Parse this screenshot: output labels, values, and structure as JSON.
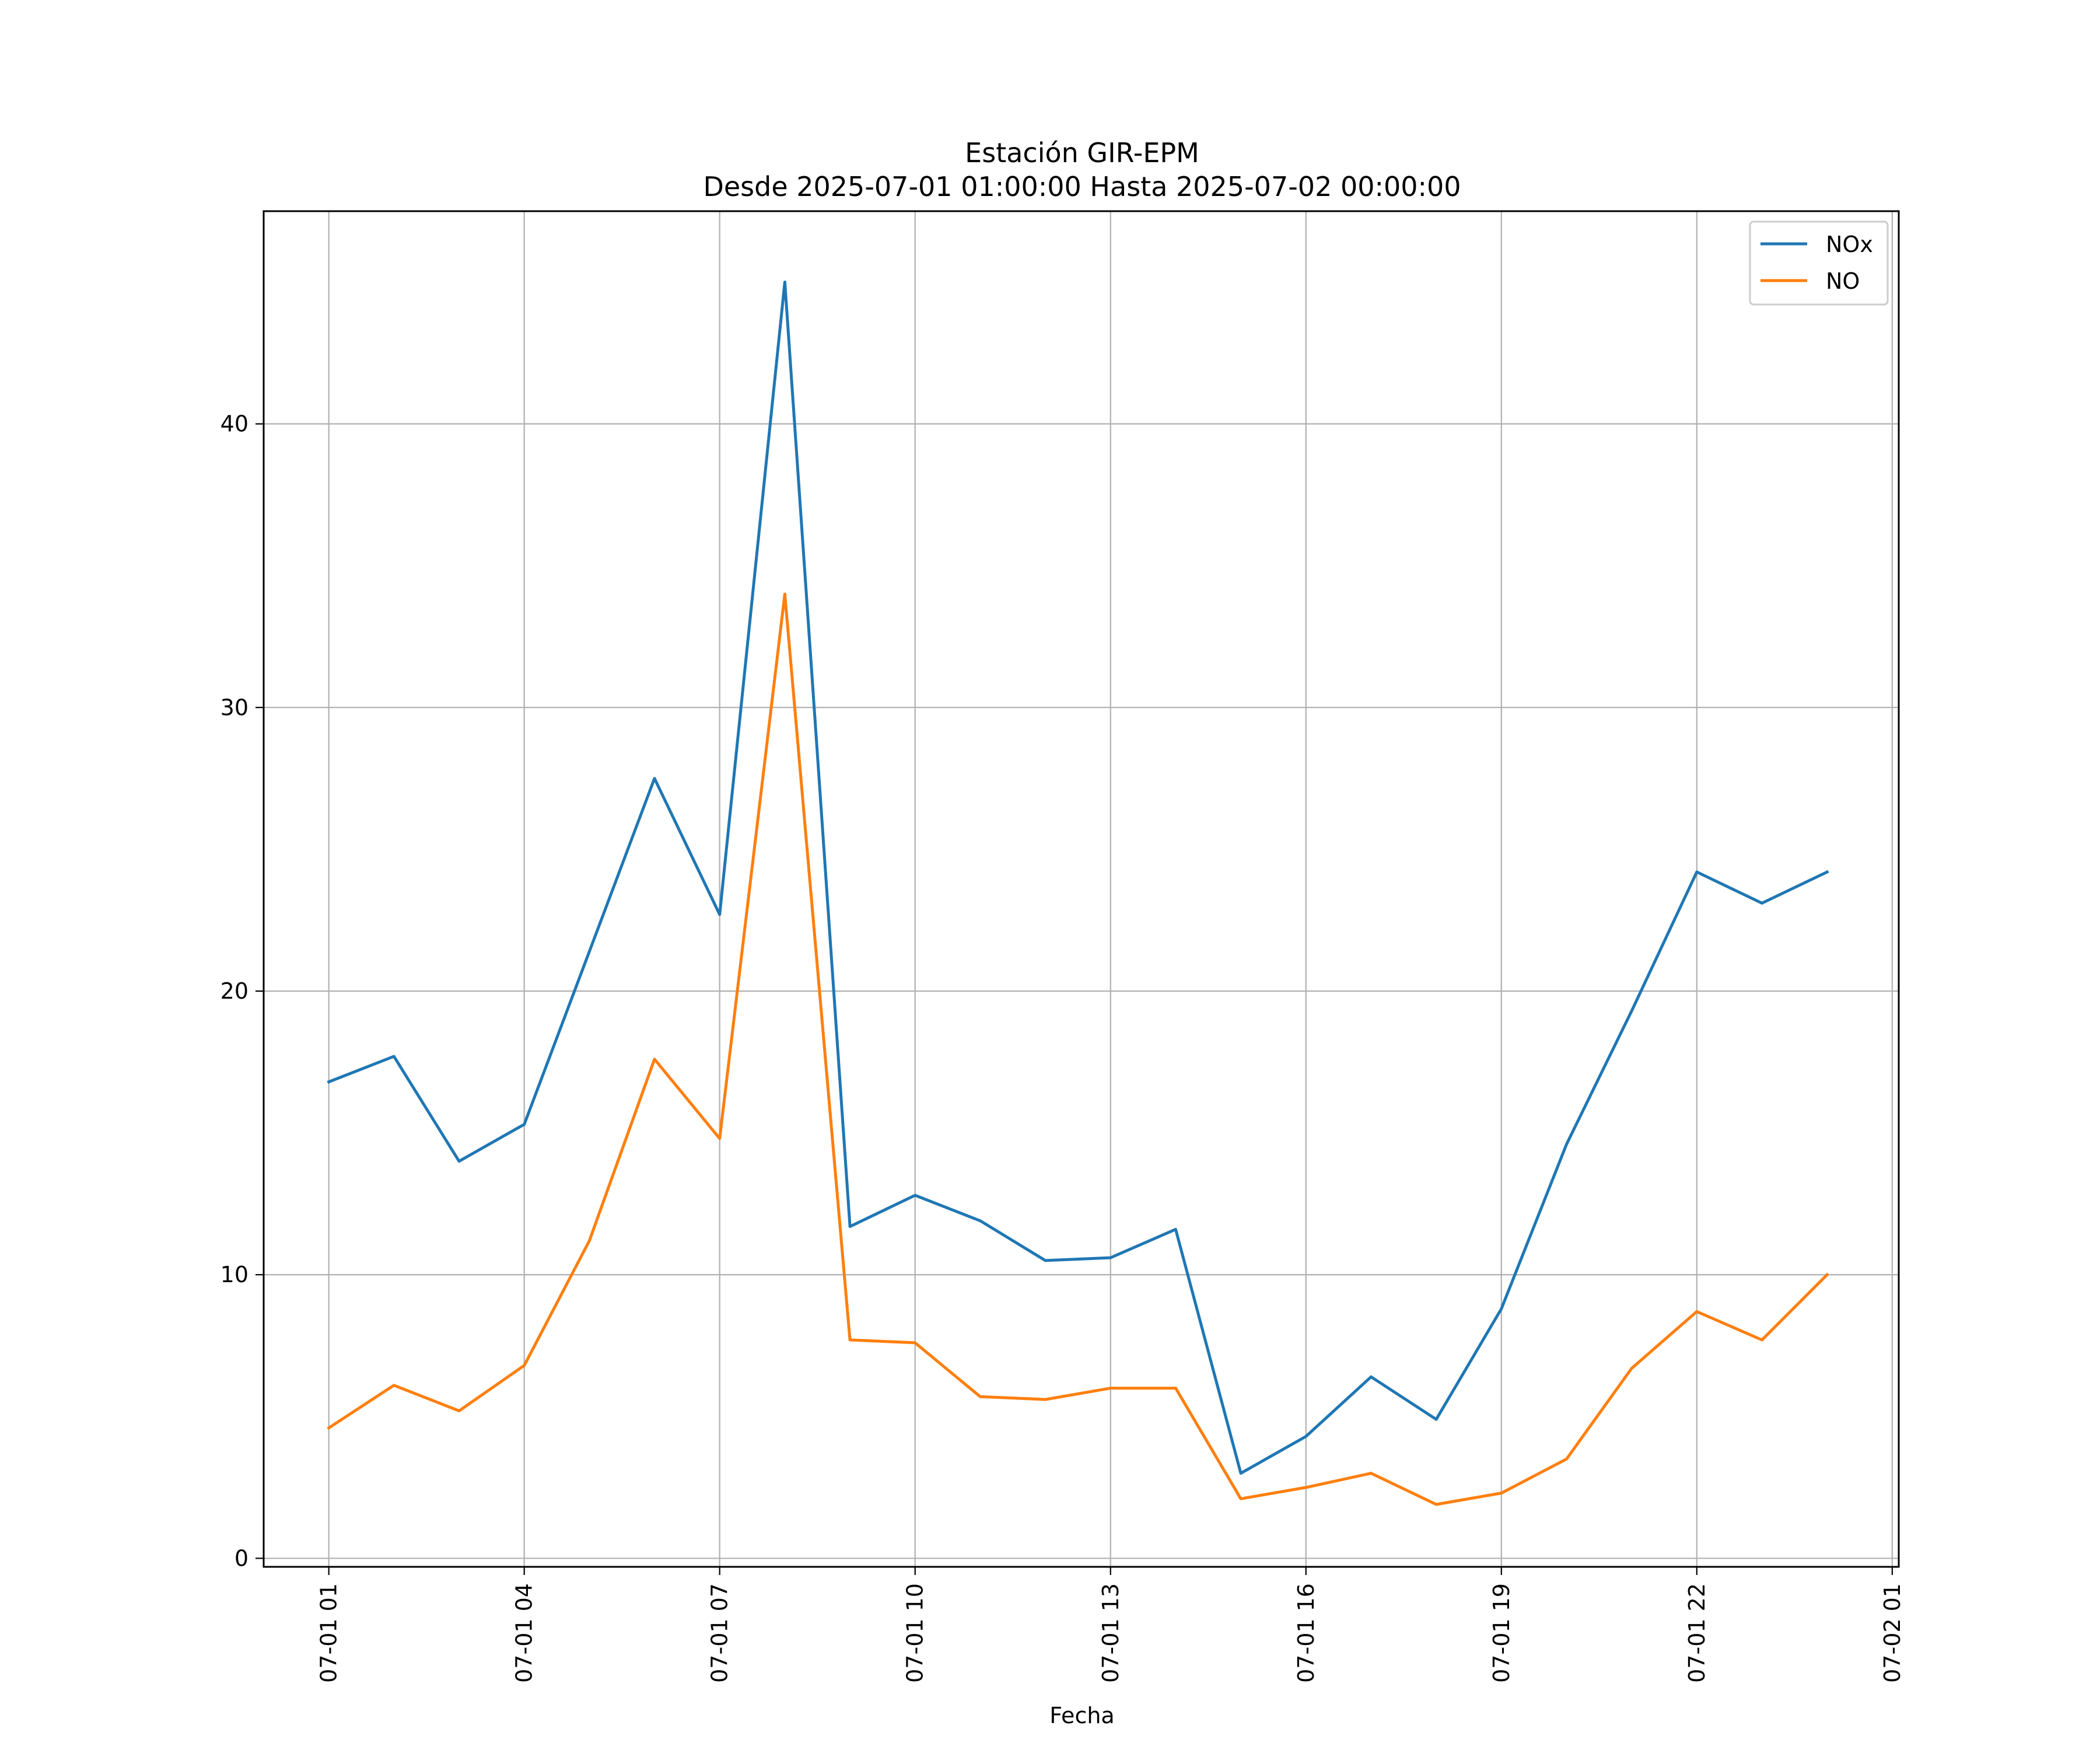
{
  "chart_data": {
    "type": "line",
    "title": "Estación GIR-EPM",
    "subtitle": "Desde 2025-07-01 01:00:00 Hasta 2025-07-02 00:00:00",
    "xlabel": "Fecha",
    "ylabel": "",
    "x": [
      "2025-07-01 01:00",
      "2025-07-01 02:00",
      "2025-07-01 03:00",
      "2025-07-01 04:00",
      "2025-07-01 05:00",
      "2025-07-01 06:00",
      "2025-07-01 07:00",
      "2025-07-01 08:00",
      "2025-07-01 09:00",
      "2025-07-01 10:00",
      "2025-07-01 11:00",
      "2025-07-01 12:00",
      "2025-07-01 13:00",
      "2025-07-01 14:00",
      "2025-07-01 15:00",
      "2025-07-01 16:00",
      "2025-07-01 17:00",
      "2025-07-01 18:00",
      "2025-07-01 19:00",
      "2025-07-01 20:00",
      "2025-07-01 21:00",
      "2025-07-01 22:00",
      "2025-07-01 23:00",
      "2025-07-02 00:00"
    ],
    "xlim": [
      "2025-07-01 00:00",
      "2025-07-02 01:06"
    ],
    "x_ticks": [
      "2025-07-01 01:00",
      "2025-07-01 04:00",
      "2025-07-01 07:00",
      "2025-07-01 10:00",
      "2025-07-01 13:00",
      "2025-07-01 16:00",
      "2025-07-01 19:00",
      "2025-07-01 22:00",
      "2025-07-02 01:00"
    ],
    "x_tick_labels": [
      "07-01 01",
      "07-01 04",
      "07-01 07",
      "07-01 10",
      "07-01 13",
      "07-01 16",
      "07-01 19",
      "07-01 22",
      "07-02 01"
    ],
    "ylim": [
      -0.3,
      47.5
    ],
    "y_ticks": [
      0,
      10,
      20,
      30,
      40
    ],
    "y_tick_labels": [
      "0",
      "10",
      "20",
      "30",
      "40"
    ],
    "grid": true,
    "legend_position": "top-right",
    "series": [
      {
        "name": "NOx",
        "color": "#1f77b4",
        "values": [
          16.8,
          17.7,
          14.0,
          15.3,
          21.4,
          27.5,
          22.7,
          45.0,
          11.7,
          12.8,
          11.9,
          10.5,
          10.6,
          11.6,
          3.0,
          4.3,
          6.4,
          4.9,
          8.8,
          14.6,
          19.3,
          24.2,
          23.1,
          24.2
        ]
      },
      {
        "name": "NO",
        "color": "#ff7f0e",
        "values": [
          4.6,
          6.1,
          5.2,
          6.8,
          11.2,
          17.6,
          14.8,
          34.0,
          7.7,
          7.6,
          5.7,
          5.6,
          6.0,
          6.0,
          2.1,
          2.5,
          3.0,
          1.9,
          2.3,
          3.5,
          6.7,
          8.7,
          7.7,
          10.0
        ]
      }
    ]
  }
}
